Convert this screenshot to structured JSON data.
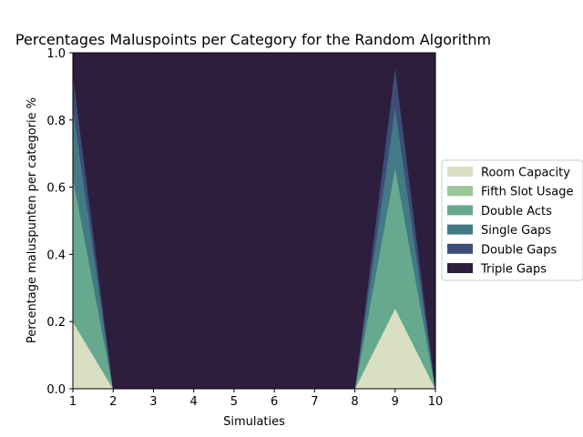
{
  "chart_data": {
    "type": "area",
    "title": "Percentages Maluspoints per Category for the Random Algorithm",
    "xlabel": "Simulaties",
    "ylabel": "Percentage maluspunten per categorie %",
    "x": [
      1,
      2,
      3,
      4,
      5,
      6,
      7,
      8,
      9,
      10
    ],
    "xlim": [
      1,
      10
    ],
    "ylim": [
      0,
      1.0
    ],
    "xticks": [
      "1",
      "2",
      "3",
      "4",
      "5",
      "6",
      "7",
      "8",
      "9",
      "10"
    ],
    "yticks": [
      "0.0",
      "0.2",
      "0.4",
      "0.6",
      "0.8",
      "1.0"
    ],
    "stacked": true,
    "legend_position": "right-center",
    "grid": false,
    "series": [
      {
        "name": "Room Capacity",
        "color": "#d8dfc2",
        "values": [
          0.2,
          0,
          0,
          0,
          0,
          0,
          0,
          0,
          0.24,
          0
        ]
      },
      {
        "name": "Fifth Slot Usage",
        "color": "#9cc59a",
        "values": [
          0.0,
          0,
          0,
          0,
          0,
          0,
          0,
          0,
          0.0,
          0
        ]
      },
      {
        "name": "Double Acts",
        "color": "#67a98e",
        "values": [
          0.43,
          0,
          0,
          0,
          0,
          0,
          0,
          0,
          0.42,
          0
        ]
      },
      {
        "name": "Single Gaps",
        "color": "#437a85",
        "values": [
          0.21,
          0,
          0,
          0,
          0,
          0,
          0,
          0,
          0.18,
          0
        ]
      },
      {
        "name": "Double Gaps",
        "color": "#3d4d77",
        "values": [
          0.1,
          0,
          0,
          0,
          0,
          0,
          0,
          0,
          0.12,
          0
        ]
      },
      {
        "name": "Triple Gaps",
        "color": "#2d1e3e",
        "values": [
          0.06,
          1,
          1,
          1,
          1,
          1,
          1,
          1,
          0.04,
          1
        ]
      }
    ]
  }
}
